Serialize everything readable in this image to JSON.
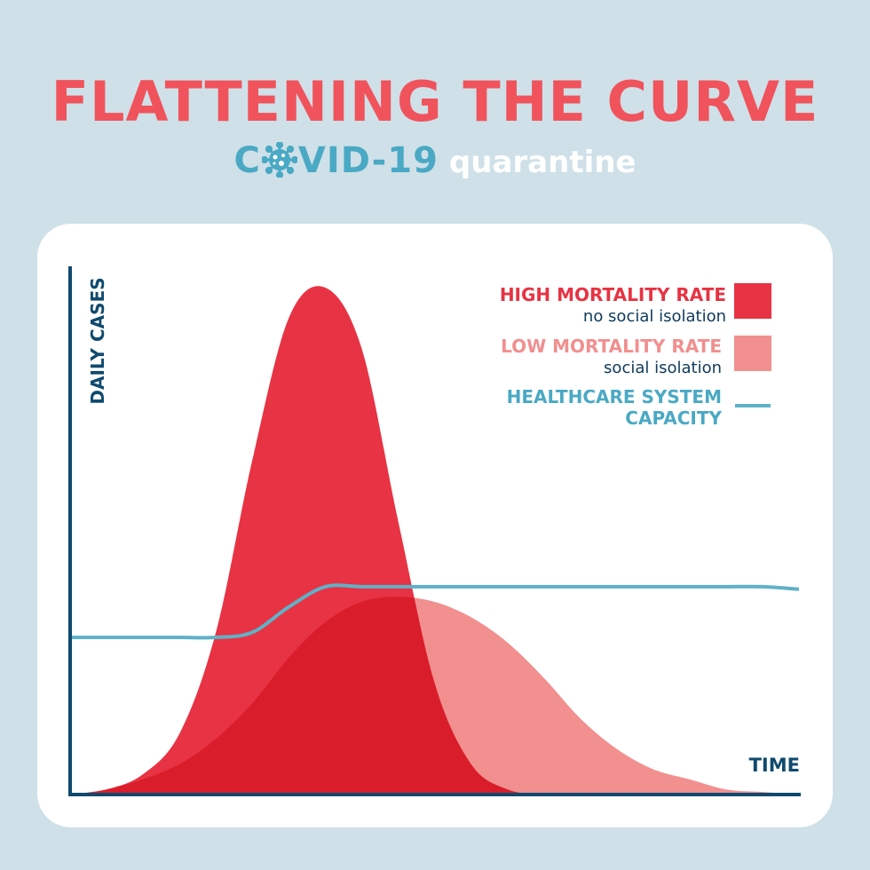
{
  "header": {
    "title": "FLATTENING THE CURVE",
    "subtitle_prefix_left": "C",
    "subtitle_virus_icon": "virus-icon",
    "subtitle_prefix_right": "VID-19",
    "subtitle_suffix": "quarantine"
  },
  "colors": {
    "background": "#cfe0e8",
    "title": "#f0535c",
    "covid": "#4aa9c4",
    "high": "#e73343",
    "low": "#f28f8f",
    "overlap": "#d91d2a",
    "capacity": "#5fb2c8",
    "axis": "#0f4a6e"
  },
  "chart_data": {
    "type": "area",
    "xlabel": "TIME",
    "ylabel": "DAILY CASES",
    "xlim": [
      0,
      100
    ],
    "ylim": [
      0,
      100
    ],
    "grid": false,
    "legend_position": "top-right",
    "x": [
      0,
      5,
      10,
      15,
      20,
      25,
      30,
      35,
      40,
      45,
      50,
      55,
      60,
      65,
      70,
      75,
      80,
      85,
      90,
      95,
      100
    ],
    "series": [
      {
        "name": "HIGH MORTALITY RATE",
        "legend_sub": "no social isolation",
        "color": "#e73343",
        "values": [
          0,
          1,
          4,
          12,
          32,
          66,
          94,
          100,
          88,
          54,
          22,
          6,
          1,
          0,
          0,
          0,
          0,
          0,
          0,
          0,
          0
        ]
      },
      {
        "name": "LOW MORTALITY RATE",
        "legend_sub": "social isolation",
        "color": "#f28f8f",
        "values": [
          0,
          1,
          3,
          6,
          11,
          18,
          27,
          34,
          38,
          39,
          38,
          35,
          30,
          23,
          15,
          9,
          5,
          3,
          1,
          0.5,
          0
        ]
      },
      {
        "name": "HEALTHCARE SYSTEM CAPACITY",
        "color": "#5fb2c8",
        "line_only": true,
        "values": [
          31,
          31,
          31,
          31,
          31,
          32,
          37,
          41,
          41,
          41,
          41,
          41,
          41,
          41,
          41,
          41,
          41,
          41,
          41,
          41,
          40.5
        ]
      }
    ]
  },
  "legend": {
    "high_label": "HIGH MORTALITY RATE",
    "high_sub": "no social isolation",
    "low_label": "LOW MORTALITY RATE",
    "low_sub": "social isolation",
    "cap_label_line1": "HEALTHCARE SYSTEM",
    "cap_label_line2": "CAPACITY"
  }
}
